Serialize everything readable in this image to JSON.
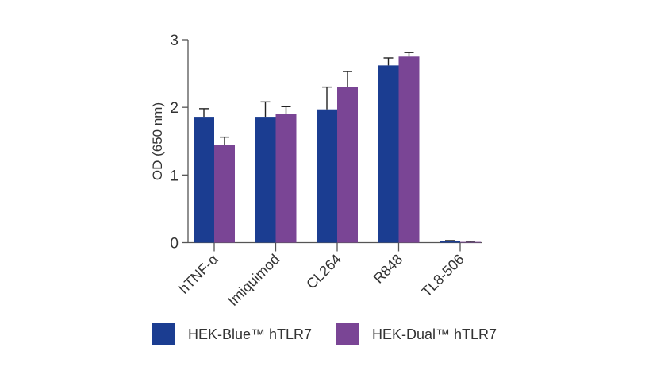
{
  "chart_data": {
    "type": "bar",
    "title": "",
    "xlabel": "",
    "ylabel": "OD (650 nm)",
    "ylim": [
      0,
      3
    ],
    "yticks": [
      0,
      1,
      2,
      3
    ],
    "grid": false,
    "legend_position": "bottom",
    "categories": [
      "hTNF-α",
      "Imiquimod",
      "CL264",
      "R848",
      "TL8-506"
    ],
    "series": [
      {
        "name": "HEK-Blue™ hTLR7",
        "color": "#1b3d91",
        "values": [
          1.86,
          1.86,
          1.97,
          2.62,
          0.02
        ],
        "errors": [
          0.12,
          0.22,
          0.33,
          0.11,
          0.01
        ]
      },
      {
        "name": "HEK-Dual™ hTLR7",
        "color": "#7a4595",
        "values": [
          1.44,
          1.9,
          2.3,
          2.75,
          0.01
        ],
        "errors": [
          0.12,
          0.11,
          0.23,
          0.06,
          0.01
        ]
      }
    ]
  }
}
